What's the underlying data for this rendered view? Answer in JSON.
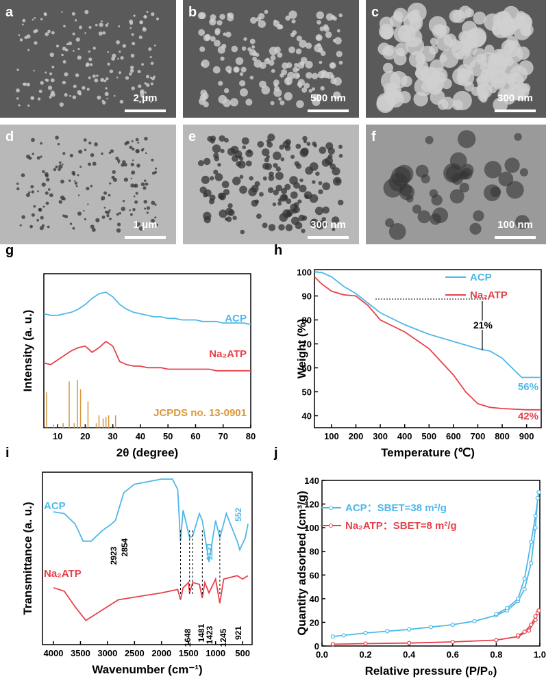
{
  "images": [
    {
      "label": "a",
      "scale": "2 μm"
    },
    {
      "label": "b",
      "scale": "500 nm"
    },
    {
      "label": "c",
      "scale": "300 nm"
    },
    {
      "label": "d",
      "scale": "1 μm"
    },
    {
      "label": "e",
      "scale": "300 nm"
    },
    {
      "label": "f",
      "scale": "100 nm"
    }
  ],
  "chart_data": [
    {
      "type": "line",
      "panel": "g",
      "x_label": "2θ (degree)",
      "y_label": "Intensity (a. u.)",
      "xlim": [
        5,
        80
      ],
      "xticks": [
        10,
        20,
        30,
        40,
        50,
        60,
        70,
        80
      ],
      "ylim": [
        0,
        100
      ],
      "series": [
        {
          "name": "ACP",
          "color": "#4db8e8",
          "x": [
            5,
            7.5,
            10,
            12.5,
            15,
            17.5,
            20,
            22.5,
            25,
            27.5,
            30,
            32.5,
            35,
            37.5,
            40,
            42.5,
            45,
            47.5,
            50,
            52.5,
            55,
            57.5,
            60,
            62.5,
            65,
            67.5,
            70,
            72.5,
            75,
            77.5,
            80
          ],
          "values": [
            74,
            73,
            73,
            74,
            75,
            77,
            80,
            84,
            87,
            88,
            85,
            80,
            77,
            75,
            74,
            73,
            72,
            72,
            71,
            71,
            70,
            70,
            70,
            69,
            69,
            69,
            68,
            68,
            68,
            68,
            67
          ]
        },
        {
          "name": "Na₂ATP",
          "color": "#e8404a",
          "x": [
            5,
            7.5,
            10,
            12.5,
            15,
            17.5,
            20,
            22.5,
            25,
            27.5,
            30,
            32.5,
            35,
            37.5,
            40,
            42.5,
            45,
            47.5,
            50,
            52.5,
            55,
            57.5,
            60,
            62.5,
            65,
            67.5,
            70,
            72.5,
            75,
            77.5,
            80
          ],
          "values": [
            42,
            41,
            44,
            47,
            50,
            52,
            53,
            49,
            52,
            56,
            53,
            43,
            41,
            40,
            40,
            39,
            39,
            39,
            38,
            38,
            38,
            38,
            38,
            38,
            38,
            37,
            37,
            37,
            37,
            37,
            37
          ]
        },
        {
          "name": "JCPDS no. 13-0901",
          "color": "#d9973a",
          "type": "stick",
          "x": [
            6,
            8.5,
            12,
            14.2,
            16,
            17.2,
            18.3,
            21,
            24,
            25,
            26.5,
            27.5,
            28.5,
            31
          ],
          "values": [
            23,
            2,
            3,
            30,
            3,
            31,
            25,
            17,
            3,
            8,
            6,
            7,
            8,
            8
          ]
        }
      ]
    },
    {
      "type": "line",
      "panel": "h",
      "x_label": "Temperature (℃)",
      "y_label": "Weight (%)",
      "xlim": [
        30,
        960
      ],
      "xticks": [
        100,
        200,
        300,
        400,
        500,
        600,
        700,
        800,
        900
      ],
      "ylim": [
        35,
        101
      ],
      "yticks": [
        40,
        50,
        60,
        70,
        80,
        90,
        100
      ],
      "legend": "upper right",
      "series": [
        {
          "name": "ACP",
          "color": "#4db8e8",
          "x": [
            30,
            60,
            100,
            150,
            200,
            250,
            300,
            400,
            500,
            600,
            700,
            750,
            800,
            850,
            880,
            900,
            960
          ],
          "values": [
            100,
            99.8,
            98,
            94,
            91,
            87,
            83,
            78,
            74,
            71,
            68,
            67,
            64,
            59,
            56,
            56,
            56
          ]
        },
        {
          "name": "Na₂ATP",
          "color": "#e8404a",
          "x": [
            30,
            60,
            100,
            150,
            200,
            250,
            300,
            400,
            500,
            600,
            650,
            700,
            750,
            800,
            900,
            960
          ],
          "values": [
            98,
            95,
            92,
            90.5,
            90,
            86,
            80,
            75,
            68,
            57,
            50,
            45,
            43.5,
            43,
            42.5,
            42.5
          ]
        }
      ],
      "annotations": [
        "21%",
        "56%",
        "42%"
      ]
    },
    {
      "type": "line",
      "panel": "i",
      "x_label": "Wavenumber (cm⁻¹)",
      "y_label": "Transmittance (a. u.)",
      "xlim": [
        4000,
        400
      ],
      "xticks": [
        4000,
        3500,
        3000,
        2500,
        2000,
        1500,
        1000,
        500
      ],
      "ylim": [
        0,
        100
      ],
      "series": [
        {
          "name": "ACP",
          "color": "#4db8e8",
          "x": [
            4000,
            3800,
            3600,
            3450,
            3300,
            3100,
            2923,
            2854,
            2700,
            2500,
            2000,
            1800,
            1700,
            1648,
            1600,
            1481,
            1423,
            1300,
            1245,
            1121,
            1000,
            921,
            800,
            600,
            552,
            450,
            400
          ],
          "values": [
            77,
            76,
            70,
            60,
            60,
            66,
            70,
            72,
            88,
            93,
            96,
            96,
            90,
            60,
            78,
            62,
            63,
            76,
            72,
            48,
            72,
            62,
            76,
            60,
            55,
            62,
            70
          ]
        },
        {
          "name": "Na₂ATP",
          "color": "#e8404a",
          "x": [
            4000,
            3800,
            3600,
            3400,
            3200,
            2800,
            2400,
            2000,
            1700,
            1648,
            1600,
            1500,
            1481,
            1423,
            1300,
            1245,
            1200,
            1121,
            1000,
            921,
            850,
            600,
            500,
            400
          ],
          "values": [
            33,
            31,
            22,
            14,
            18,
            26,
            28,
            30,
            32,
            26,
            33,
            36,
            30,
            36,
            35,
            27,
            36,
            30,
            38,
            24,
            38,
            40,
            38,
            40
          ]
        }
      ],
      "annotations": [
        "2923",
        "2854",
        "1648",
        "1481",
        "1423",
        "1245",
        "921",
        "1121",
        "552"
      ]
    },
    {
      "type": "scatter-line",
      "panel": "j",
      "x_label": "Relative pressure (P/P₀)",
      "y_label": "Quantity adsorbed (cm³/g)",
      "xlim": [
        0,
        1
      ],
      "xticks": [
        {
          "value": 0,
          "label": "0.0"
        },
        0.2,
        0.4,
        0.6,
        0.8,
        {
          "value": 1,
          "label": "1.0"
        }
      ],
      "ylim": [
        0,
        140
      ],
      "yticks": [
        0,
        20,
        40,
        60,
        80,
        100,
        120,
        140
      ],
      "legend": "upper left",
      "series": [
        {
          "name": "ACP：SBET=38 m²/g",
          "color": "#4db8e8",
          "x": [
            0.05,
            0.1,
            0.2,
            0.3,
            0.4,
            0.5,
            0.6,
            0.7,
            0.8,
            0.85,
            0.9,
            0.93,
            0.96,
            0.98,
            0.99,
            0.995,
            0.98,
            0.96,
            0.93,
            0.9,
            0.85,
            0.8
          ],
          "values": [
            8,
            9,
            11,
            12.5,
            14,
            16,
            18,
            21,
            26,
            30,
            38,
            48,
            70,
            100,
            125,
            130,
            110,
            88,
            57,
            40,
            32,
            27
          ]
        },
        {
          "name": "Na₂ATP：SBET=8 m²/g",
          "color": "#e8404a",
          "x": [
            0.05,
            0.2,
            0.4,
            0.6,
            0.8,
            0.9,
            0.95,
            0.98,
            0.99,
            0.995,
            0.98,
            0.96,
            0.93,
            0.9
          ],
          "values": [
            1.5,
            2,
            2.5,
            3.5,
            5,
            8,
            13,
            22,
            28,
            30,
            25,
            18,
            12,
            9
          ]
        }
      ]
    }
  ]
}
